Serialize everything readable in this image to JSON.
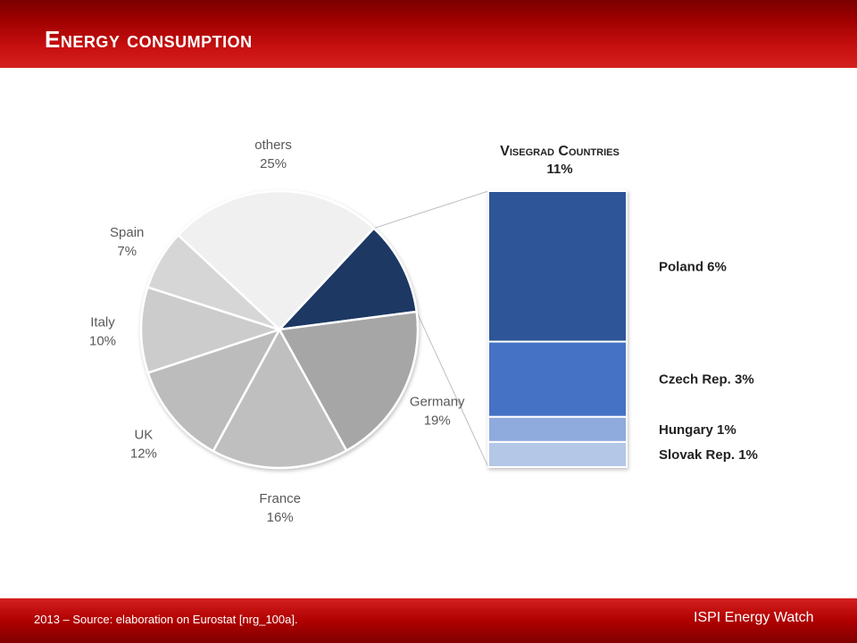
{
  "header": {
    "title": "Energy consumption"
  },
  "footer": {
    "source": "2013 – Source: elaboration on Eurostat [nrg_100a].",
    "brand": "ISPI Energy Watch"
  },
  "chart_data": [
    {
      "type": "pie",
      "slices": [
        {
          "name": "others",
          "value": 25,
          "label": "25%",
          "color": "#f0f0f0"
        },
        {
          "name": "Visegrad Countries",
          "value": 11,
          "label": "",
          "color": "#1f3864"
        },
        {
          "name": "Germany",
          "value": 19,
          "label": "19%",
          "color": "#a6a6a6"
        },
        {
          "name": "France",
          "value": 16,
          "label": "16%",
          "color": "#bfbfbf"
        },
        {
          "name": "UK",
          "value": 12,
          "label": "12%",
          "color": "#bcbcbc"
        },
        {
          "name": "Italy",
          "value": 10,
          "label": "10%",
          "color": "#cccccc"
        },
        {
          "name": "Spain",
          "value": 7,
          "label": "7%",
          "color": "#d6d6d6"
        }
      ]
    },
    {
      "type": "bar",
      "stacked": true,
      "title": "Visegrad Countries",
      "total_label": "11%",
      "segments": [
        {
          "name": "Poland",
          "value": 6,
          "label": "Poland 6%",
          "color": "#2f5597"
        },
        {
          "name": "Czech Rep.",
          "value": 3,
          "label": "Czech Rep. 3%",
          "color": "#4472c4"
        },
        {
          "name": "Hungary",
          "value": 1,
          "label": "Hungary 1%",
          "color": "#8faadc"
        },
        {
          "name": "Slovak Rep.",
          "value": 1,
          "label": "Slovak Rep. 1%",
          "color": "#b4c7e7"
        }
      ]
    }
  ]
}
